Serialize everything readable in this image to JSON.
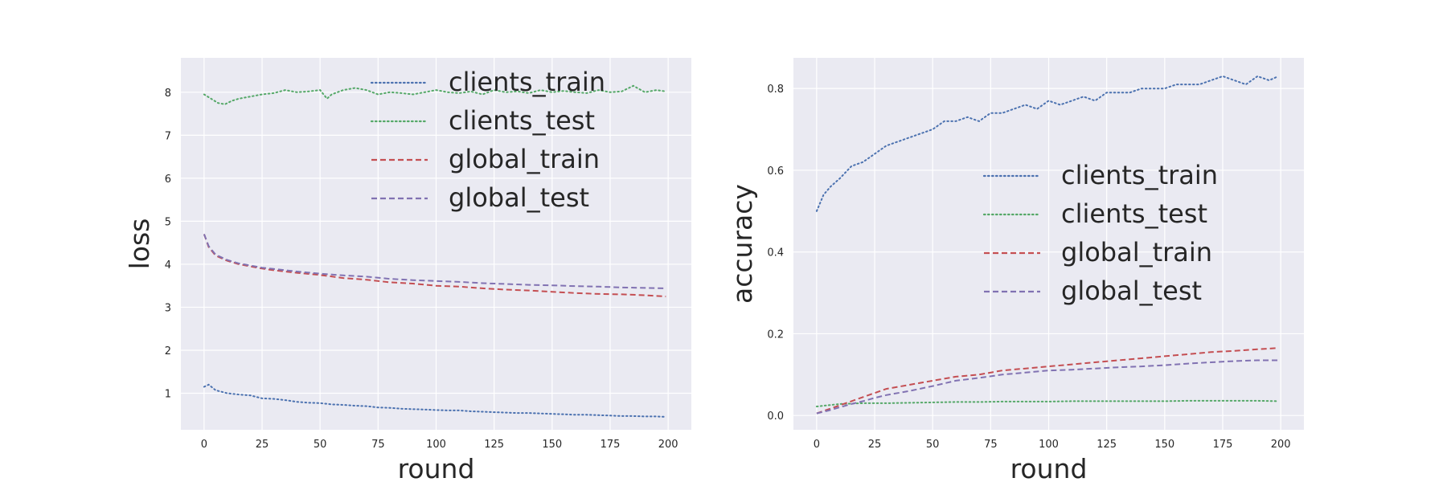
{
  "chart_data": [
    {
      "type": "line",
      "title": "",
      "xlabel": "round",
      "ylabel": "loss",
      "xlim": [
        -10,
        210
      ],
      "ylim": [
        0.15,
        8.8
      ],
      "xticks": [
        0,
        25,
        50,
        75,
        100,
        125,
        150,
        175,
        200
      ],
      "yticks": [
        1,
        2,
        3,
        4,
        5,
        6,
        7,
        8
      ],
      "grid": true,
      "legend_position": "top-right",
      "series": [
        {
          "name": "clients_train",
          "color": "#4C72B0",
          "style": "dotted",
          "x": [
            0,
            2,
            5,
            10,
            15,
            20,
            25,
            30,
            35,
            40,
            45,
            50,
            55,
            60,
            65,
            70,
            75,
            80,
            85,
            90,
            95,
            100,
            105,
            110,
            115,
            120,
            125,
            130,
            135,
            140,
            145,
            150,
            155,
            160,
            165,
            170,
            175,
            180,
            185,
            190,
            195,
            199
          ],
          "y": [
            1.15,
            1.2,
            1.07,
            1.0,
            0.97,
            0.95,
            0.88,
            0.87,
            0.84,
            0.8,
            0.78,
            0.77,
            0.74,
            0.73,
            0.71,
            0.7,
            0.67,
            0.66,
            0.64,
            0.63,
            0.62,
            0.61,
            0.6,
            0.6,
            0.58,
            0.57,
            0.56,
            0.55,
            0.54,
            0.54,
            0.53,
            0.52,
            0.51,
            0.5,
            0.5,
            0.49,
            0.48,
            0.47,
            0.47,
            0.46,
            0.46,
            0.45
          ]
        },
        {
          "name": "clients_test",
          "color": "#55A868",
          "style": "dotted",
          "x": [
            0,
            3,
            6,
            9,
            12,
            15,
            20,
            25,
            30,
            35,
            40,
            45,
            50,
            53,
            55,
            60,
            65,
            70,
            75,
            80,
            85,
            90,
            95,
            100,
            105,
            110,
            115,
            120,
            125,
            130,
            135,
            140,
            145,
            150,
            155,
            160,
            165,
            170,
            175,
            180,
            185,
            190,
            195,
            199
          ],
          "y": [
            7.95,
            7.85,
            7.75,
            7.72,
            7.8,
            7.85,
            7.9,
            7.95,
            7.98,
            8.05,
            8.0,
            8.02,
            8.05,
            7.85,
            7.95,
            8.05,
            8.1,
            8.05,
            7.95,
            8.0,
            7.98,
            7.95,
            8.0,
            8.05,
            8.0,
            7.98,
            8.02,
            7.95,
            8.05,
            8.0,
            8.02,
            7.98,
            8.05,
            8.0,
            8.03,
            8.0,
            7.98,
            8.05,
            8.0,
            8.02,
            8.15,
            8.0,
            8.05,
            8.02
          ]
        },
        {
          "name": "global_train",
          "color": "#C44E52",
          "style": "dashed",
          "x": [
            0,
            2,
            5,
            10,
            15,
            20,
            25,
            30,
            40,
            50,
            60,
            70,
            80,
            90,
            100,
            110,
            120,
            130,
            140,
            150,
            160,
            170,
            180,
            190,
            199
          ],
          "y": [
            4.7,
            4.4,
            4.2,
            4.08,
            4.0,
            3.95,
            3.9,
            3.86,
            3.8,
            3.75,
            3.68,
            3.64,
            3.58,
            3.55,
            3.5,
            3.48,
            3.44,
            3.41,
            3.39,
            3.36,
            3.33,
            3.31,
            3.3,
            3.28,
            3.25
          ]
        },
        {
          "name": "global_test",
          "color": "#8172B2",
          "style": "dashed",
          "x": [
            0,
            2,
            5,
            10,
            15,
            20,
            25,
            30,
            40,
            50,
            60,
            70,
            80,
            90,
            100,
            110,
            120,
            130,
            140,
            150,
            160,
            170,
            180,
            190,
            199
          ],
          "y": [
            4.7,
            4.42,
            4.22,
            4.1,
            4.02,
            3.97,
            3.92,
            3.89,
            3.83,
            3.78,
            3.74,
            3.71,
            3.66,
            3.63,
            3.61,
            3.59,
            3.56,
            3.54,
            3.52,
            3.51,
            3.49,
            3.48,
            3.46,
            3.45,
            3.44
          ]
        }
      ]
    },
    {
      "type": "line",
      "title": "",
      "xlabel": "round",
      "ylabel": "accuracy",
      "xlim": [
        -10,
        210
      ],
      "ylim": [
        -0.035,
        0.875
      ],
      "xticks": [
        0,
        25,
        50,
        75,
        100,
        125,
        150,
        175,
        200
      ],
      "yticks": [
        0.0,
        0.2,
        0.4,
        0.6,
        0.8
      ],
      "grid": true,
      "legend_position": "center-right",
      "series": [
        {
          "name": "clients_train",
          "color": "#4C72B0",
          "style": "dotted",
          "x": [
            0,
            3,
            6,
            10,
            15,
            20,
            25,
            30,
            35,
            40,
            45,
            50,
            55,
            60,
            65,
            70,
            75,
            80,
            85,
            90,
            95,
            100,
            105,
            110,
            115,
            120,
            125,
            130,
            135,
            140,
            145,
            150,
            155,
            160,
            165,
            170,
            175,
            180,
            185,
            190,
            195,
            199
          ],
          "y": [
            0.5,
            0.54,
            0.56,
            0.58,
            0.61,
            0.62,
            0.64,
            0.66,
            0.67,
            0.68,
            0.69,
            0.7,
            0.72,
            0.72,
            0.73,
            0.72,
            0.74,
            0.74,
            0.75,
            0.76,
            0.75,
            0.77,
            0.76,
            0.77,
            0.78,
            0.77,
            0.79,
            0.79,
            0.79,
            0.8,
            0.8,
            0.8,
            0.81,
            0.81,
            0.81,
            0.82,
            0.83,
            0.82,
            0.81,
            0.83,
            0.82,
            0.83
          ]
        },
        {
          "name": "clients_test",
          "color": "#55A868",
          "style": "dotted",
          "x": [
            0,
            10,
            20,
            30,
            40,
            50,
            60,
            70,
            80,
            90,
            100,
            110,
            120,
            130,
            140,
            150,
            160,
            170,
            180,
            190,
            199
          ],
          "y": [
            0.022,
            0.028,
            0.03,
            0.03,
            0.031,
            0.032,
            0.033,
            0.033,
            0.034,
            0.034,
            0.034,
            0.035,
            0.035,
            0.035,
            0.035,
            0.035,
            0.036,
            0.036,
            0.036,
            0.036,
            0.035
          ]
        },
        {
          "name": "global_train",
          "color": "#C44E52",
          "style": "dashed",
          "x": [
            0,
            5,
            10,
            15,
            20,
            25,
            30,
            40,
            50,
            60,
            70,
            80,
            90,
            100,
            110,
            120,
            130,
            140,
            150,
            160,
            170,
            180,
            190,
            199
          ],
          "y": [
            0.005,
            0.015,
            0.025,
            0.035,
            0.045,
            0.055,
            0.065,
            0.075,
            0.085,
            0.095,
            0.1,
            0.11,
            0.115,
            0.12,
            0.125,
            0.13,
            0.135,
            0.14,
            0.145,
            0.15,
            0.155,
            0.158,
            0.162,
            0.165
          ]
        },
        {
          "name": "global_test",
          "color": "#8172B2",
          "style": "dashed",
          "x": [
            0,
            5,
            10,
            15,
            20,
            25,
            30,
            40,
            50,
            60,
            70,
            80,
            90,
            100,
            110,
            120,
            130,
            140,
            150,
            160,
            170,
            180,
            190,
            199
          ],
          "y": [
            0.005,
            0.012,
            0.02,
            0.028,
            0.035,
            0.043,
            0.05,
            0.06,
            0.072,
            0.085,
            0.092,
            0.1,
            0.105,
            0.11,
            0.112,
            0.115,
            0.118,
            0.12,
            0.123,
            0.127,
            0.13,
            0.133,
            0.135,
            0.135
          ]
        }
      ]
    }
  ]
}
